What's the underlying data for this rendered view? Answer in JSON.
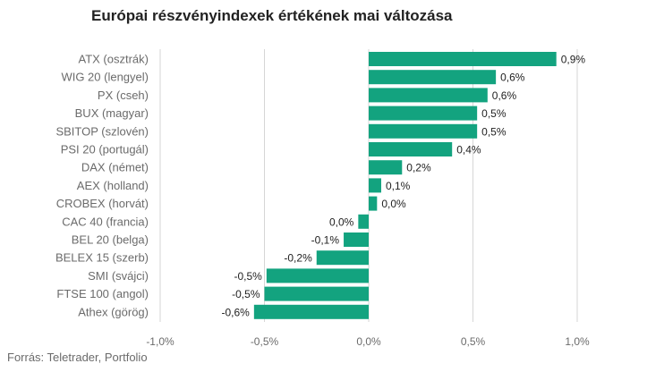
{
  "chart_data": {
    "type": "bar",
    "orientation": "horizontal",
    "title": "Európai részvényindexek értékének mai változása",
    "source": "Forrás: Teletrader, Portfolio",
    "categories": [
      "ATX (osztrák)",
      "WIG 20 (lengyel)",
      "PX (cseh)",
      "BUX (magyar)",
      "SBITOP (szlovén)",
      "PSI 20 (portugál)",
      "DAX (német)",
      "AEX (holland)",
      "CROBEX (horvát)",
      "CAC 40 (francia)",
      "BEL 20 (belga)",
      "BELEX 15 (szerb)",
      "SMI (svájci)",
      "FTSE 100 (angol)",
      "Athex (görög)"
    ],
    "values": [
      0.9,
      0.61,
      0.57,
      0.52,
      0.52,
      0.4,
      0.16,
      0.06,
      0.04,
      -0.05,
      -0.12,
      -0.25,
      -0.49,
      -0.5,
      -0.55
    ],
    "value_labels": [
      "0,9%",
      "0,6%",
      "0,6%",
      "0,5%",
      "0,5%",
      "0,4%",
      "0,2%",
      "0,1%",
      "0,0%",
      "0,0%",
      "-0,1%",
      "-0,2%",
      "-0,5%",
      "-0,5%",
      "-0,6%"
    ],
    "xlim": [
      -1.0,
      1.0
    ],
    "xticks": [
      -1.0,
      -0.5,
      0.0,
      0.5,
      1.0
    ],
    "xtick_labels": [
      "-1,0%",
      "-0,5%",
      "0,0%",
      "0,5%",
      "1,0%"
    ],
    "grid": true,
    "colors": {
      "bar": "#13a37f",
      "grid": "#d6d6d6",
      "text": "#222222",
      "muted": "#6b6b6b"
    }
  }
}
